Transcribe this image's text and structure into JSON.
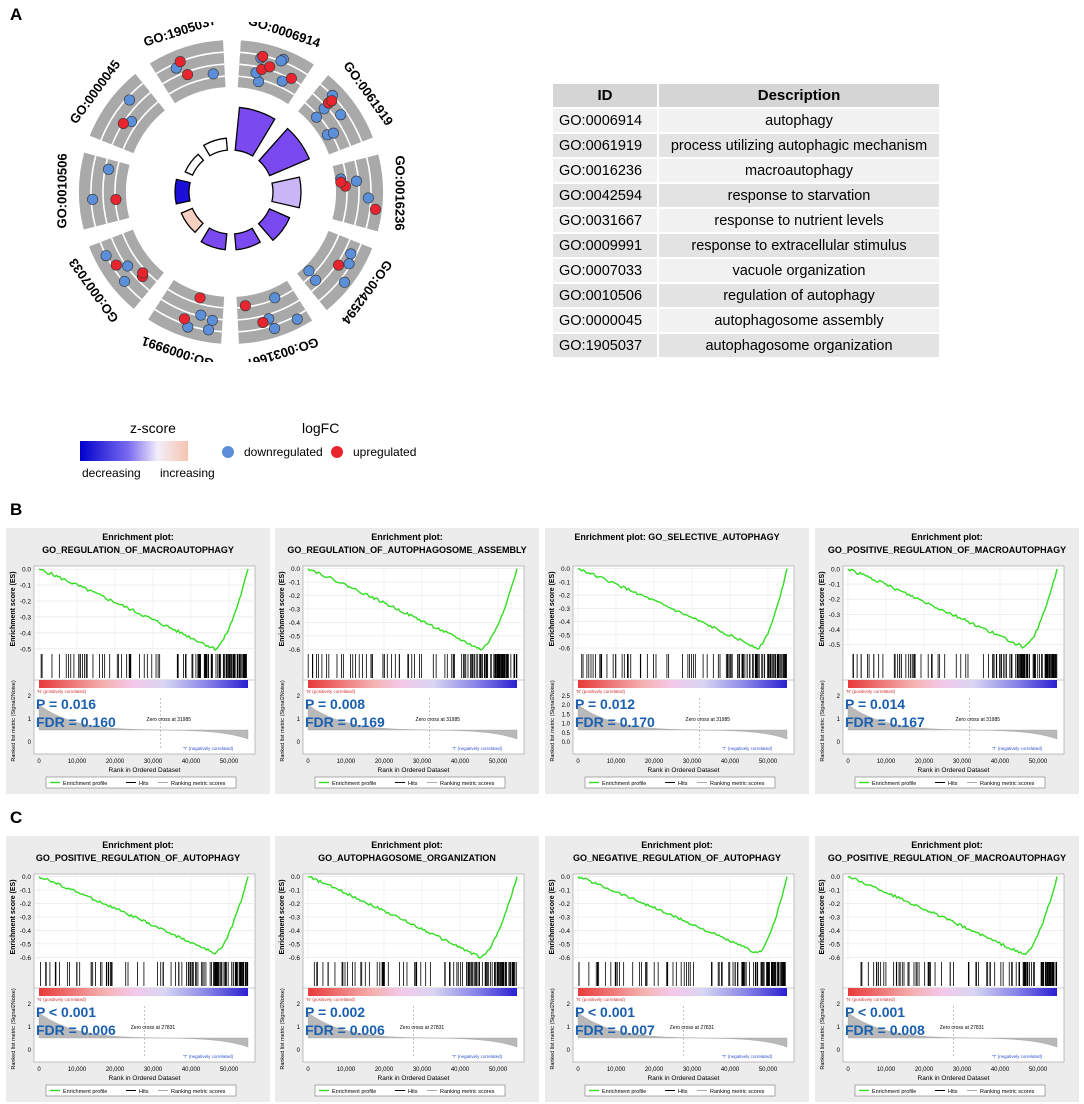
{
  "panel_labels": {
    "a": "A",
    "b": "B",
    "c": "C"
  },
  "chart_data": [
    {
      "type": "circos",
      "title": "GO term circle plot",
      "terms": [
        {
          "id": "GO:0006914",
          "zscore_bar": 0.55,
          "down": 6,
          "up": 4
        },
        {
          "id": "GO:0061919",
          "zscore_bar": 0.55,
          "down": 6,
          "up": 2
        },
        {
          "id": "GO:0016236",
          "zscore_bar": 0.35,
          "down": 3,
          "up": 3
        },
        {
          "id": "GO:0042594",
          "zscore_bar": 0.3,
          "down": 5,
          "up": 1
        },
        {
          "id": "GO:0031667",
          "zscore_bar": 0.25,
          "down": 4,
          "up": 2
        },
        {
          "id": "GO:0009991",
          "zscore_bar": 0.25,
          "down": 4,
          "up": 2
        },
        {
          "id": "GO:0007033",
          "zscore_bar": 0.2,
          "down": 3,
          "up": 3
        },
        {
          "id": "GO:0010506",
          "zscore_bar": 0.15,
          "down": 2,
          "up": 1
        },
        {
          "id": "GO:0000045",
          "zscore_bar": 0.1,
          "down": 2,
          "up": 1
        },
        {
          "id": "GO:1905037",
          "zscore_bar": 0.12,
          "down": 2,
          "up": 2
        }
      ]
    },
    {
      "type": "table",
      "columns": [
        "ID",
        "Description"
      ],
      "rows": [
        [
          "GO:0006914",
          "autophagy"
        ],
        [
          "GO:0061919",
          "process utilizing autophagic mechanism"
        ],
        [
          "GO:0016236",
          "macroautophagy"
        ],
        [
          "GO:0042594",
          "response to starvation"
        ],
        [
          "GO:0031667",
          "response to nutrient levels"
        ],
        [
          "GO:0009991",
          "response to extracellular stimulus"
        ],
        [
          "GO:0007033",
          "vacuole organization"
        ],
        [
          "GO:0010506",
          "regulation of autophagy"
        ],
        [
          "GO:0000045",
          "autophagosome assembly"
        ],
        [
          "GO:1905037",
          "autophagosome organization"
        ]
      ]
    },
    {
      "type": "line",
      "panel": "B",
      "plots": [
        {
          "title1": "Enrichment plot:",
          "title2": "GO_REGULATION_OF_MACROAUTOPHAGY",
          "P": "P  = 0.016",
          "FDR": "FDR = 0.160",
          "zero": "Zero cross at 31985",
          "min_es": -0.5,
          "ylim": [
            -0.52,
            0.02
          ],
          "yticks": [
            "0.0",
            "-0.1",
            "-0.2",
            "-0.3",
            "-0.4",
            "-0.5"
          ],
          "mticks": [
            "2",
            "1",
            "0"
          ]
        },
        {
          "title1": "Enrichment plot:",
          "title2": "GO_REGULATION_OF_AUTOPHAGOSOME_ASSEMBLY",
          "P": "P  = 0.008",
          "FDR": "FDR = 0.169",
          "zero": "Zero cross at 31985",
          "min_es": -0.6,
          "ylim": [
            -0.62,
            0.02
          ],
          "yticks": [
            "0.0",
            "-0.1",
            "-0.2",
            "-0.3",
            "-0.4",
            "-0.5",
            "-0.6"
          ],
          "mticks": [
            "2",
            "1",
            "0"
          ]
        },
        {
          "title1": "Enrichment plot: GO_SELECTIVE_AUTOPHAGY",
          "title2": "",
          "P": "P  = 0.012",
          "FDR": "FDR = 0.170",
          "zero": "Zero cross at 31985",
          "min_es": -0.6,
          "ylim": [
            -0.63,
            0.02
          ],
          "yticks": [
            "0.0",
            "-0.1",
            "-0.2",
            "-0.3",
            "-0.4",
            "-0.5",
            "-0.6"
          ],
          "mticks": [
            "2.5",
            "2.0",
            "1.5",
            "1.0",
            "0.5",
            "0.0"
          ]
        },
        {
          "title1": "Enrichment plot:",
          "title2": "GO_POSITIVE_REGULATION_OF_MACROAUTOPHAGY",
          "P": "P  = 0.014",
          "FDR": "FDR = 0.167",
          "zero": "Zero cross at 31985",
          "min_es": -0.52,
          "ylim": [
            -0.55,
            0.02
          ],
          "yticks": [
            "0.0",
            "-0.1",
            "-0.2",
            "-0.3",
            "-0.4",
            "-0.5"
          ],
          "mticks": [
            "2",
            "1",
            "0"
          ]
        }
      ]
    },
    {
      "type": "line",
      "panel": "C",
      "plots": [
        {
          "title1": "Enrichment plot:",
          "title2": "GO_POSITIVE_REGULATION_OF_AUTOPHAGY",
          "P": "P  < 0.001",
          "FDR": "FDR = 0.006",
          "zero": "Zero cross at 27831",
          "min_es": -0.57,
          "ylim": [
            -0.62,
            0.02
          ],
          "yticks": [
            "0.0",
            "-0.1",
            "-0.2",
            "-0.3",
            "-0.4",
            "-0.5",
            "-0.6"
          ],
          "mticks": [
            "2",
            "1",
            "0"
          ]
        },
        {
          "title1": "Enrichment plot:",
          "title2": "GO_AUTOPHAGOSOME_ORGANIZATION",
          "P": "P  = 0.002",
          "FDR": "FDR = 0.006",
          "zero": "Zero cross at 27831",
          "min_es": -0.6,
          "ylim": [
            -0.62,
            0.02
          ],
          "yticks": [
            "0.0",
            "-0.1",
            "-0.2",
            "-0.3",
            "-0.4",
            "-0.5",
            "-0.6"
          ],
          "mticks": [
            "2",
            "1",
            "0"
          ]
        },
        {
          "title1": "Enrichment plot:",
          "title2": "GO_NEGATIVE_REGULATION_OF_AUTOPHAGY",
          "P": "P  < 0.001",
          "FDR": "FDR = 0.007",
          "zero": "Zero cross at 27831",
          "min_es": -0.57,
          "ylim": [
            -0.62,
            0.02
          ],
          "yticks": [
            "0.0",
            "-0.1",
            "-0.2",
            "-0.3",
            "-0.4",
            "-0.5",
            "-0.6"
          ],
          "mticks": [
            "2",
            "1",
            "0"
          ]
        },
        {
          "title1": "Enrichment plot:",
          "title2": "GO_POSITIVE_REGULATION_OF_MACROAUTOPHAGY",
          "P": "P  < 0.001",
          "FDR": "FDR = 0.008",
          "zero": "Zero cross at 27831",
          "min_es": -0.58,
          "ylim": [
            -0.62,
            0.02
          ],
          "yticks": [
            "0.0",
            "-0.1",
            "-0.2",
            "-0.3",
            "-0.4",
            "-0.5",
            "-0.6"
          ],
          "mticks": [
            "2",
            "1",
            "0"
          ]
        }
      ]
    }
  ],
  "gsea_common": {
    "ylabel": "Enrichment score (ES)",
    "ylabel2": "Ranked list metric (Signal2Noise)",
    "xlabel": "Rank in Ordered Dataset",
    "xticks": [
      "0",
      "10,000",
      "20,000",
      "30,000",
      "40,000",
      "50,000"
    ],
    "pos_label": "'N' (positively correlated)",
    "neg_label": "'T' (negatively correlated)",
    "legend": [
      "Enrichment profile",
      "Hits",
      "Ranking metric scores"
    ],
    "x_max": 55000
  },
  "legend": {
    "zscore_title": "z-score",
    "zscore_low": "decreasing",
    "zscore_high": "increasing",
    "logfc_title": "logFC",
    "down_label": "downregulated",
    "up_label": "upregulated"
  },
  "colors": {
    "down": "#5b8fd9",
    "up": "#e8252f",
    "profile": "#33dd22",
    "bar": "#7a4af0"
  }
}
